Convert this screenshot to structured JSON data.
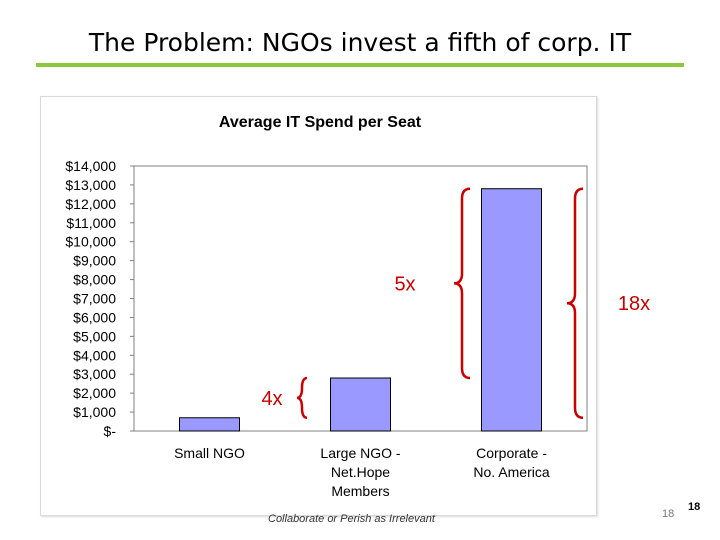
{
  "slide": {
    "title": "The Problem: NGOs invest a fifth of corp. IT",
    "footer": "Collaborate or Perish as Irrelevant",
    "page_number_small": "18",
    "page_number_large": "18",
    "accent_color": "#8dc63f"
  },
  "chart_data": {
    "type": "bar",
    "title": "Average IT Spend per Seat",
    "categories": [
      [
        "Small NGO"
      ],
      [
        "Large NGO -",
        "Net.Hope",
        "Members"
      ],
      [
        "Corporate -",
        "No. America"
      ]
    ],
    "values": [
      700,
      2800,
      12800
    ],
    "yticks": [
      {
        "value": 0,
        "label": "$-"
      },
      {
        "value": 1000,
        "label": "$1,000"
      },
      {
        "value": 2000,
        "label": "$2,000"
      },
      {
        "value": 3000,
        "label": "$3,000"
      },
      {
        "value": 4000,
        "label": "$4,000"
      },
      {
        "value": 5000,
        "label": "$5,000"
      },
      {
        "value": 6000,
        "label": "$6,000"
      },
      {
        "value": 7000,
        "label": "$7,000"
      },
      {
        "value": 8000,
        "label": "$8,000"
      },
      {
        "value": 9000,
        "label": "$9,000"
      },
      {
        "value": 10000,
        "label": "$10,000"
      },
      {
        "value": 11000,
        "label": "$11,000"
      },
      {
        "value": 12000,
        "label": "$12,000"
      },
      {
        "value": 13000,
        "label": "$13,000"
      },
      {
        "value": 14000,
        "label": "$14,000"
      }
    ],
    "ylim": [
      0,
      14000
    ],
    "bar_color": "#9999ff",
    "annotation_color": "#cc0000",
    "annotations": [
      {
        "label": "4x",
        "y_from": 700,
        "y_to": 2800
      },
      {
        "label": "5x",
        "y_from": 2800,
        "y_to": 12800
      },
      {
        "label": "18x",
        "y_from": 700,
        "y_to": 12800
      }
    ]
  }
}
